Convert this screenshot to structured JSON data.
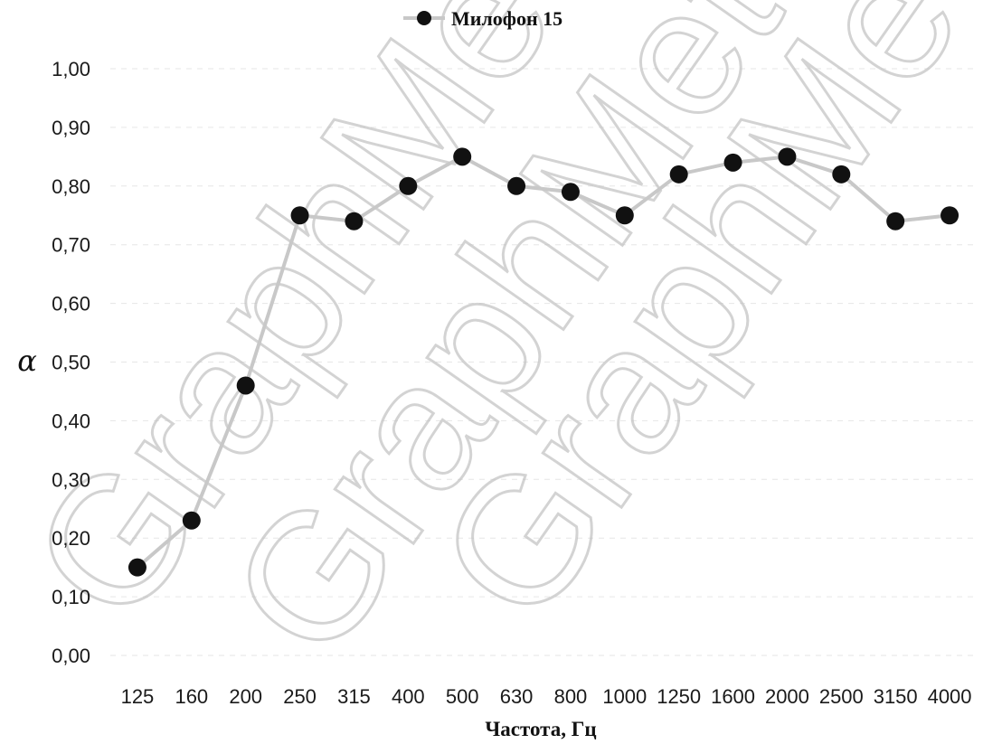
{
  "chart_data": {
    "type": "line",
    "categories": [
      "125",
      "160",
      "200",
      "250",
      "315",
      "400",
      "500",
      "630",
      "800",
      "1000",
      "1250",
      "1600",
      "2000",
      "2500",
      "3150",
      "4000"
    ],
    "series": [
      {
        "name": "Милофон 15",
        "values": [
          0.15,
          0.23,
          0.46,
          0.75,
          0.74,
          0.8,
          0.85,
          0.8,
          0.79,
          0.75,
          0.82,
          0.84,
          0.85,
          0.82,
          0.74,
          0.75
        ],
        "marker": "circle",
        "marker_color": "#111111",
        "line_color": "#c8c8c8"
      }
    ],
    "xlabel": "Частота, Гц",
    "ylabel": "α",
    "ylim": [
      0,
      1
    ],
    "y_ticks": [
      "0,00",
      "0,10",
      "0,20",
      "0,30",
      "0,40",
      "0,50",
      "0,60",
      "0,70",
      "0,80",
      "0,90",
      "1,00"
    ],
    "grid": true,
    "legend_position": "top"
  },
  "watermark": {
    "text": "GraphMet",
    "color": "#bdbdbd"
  }
}
